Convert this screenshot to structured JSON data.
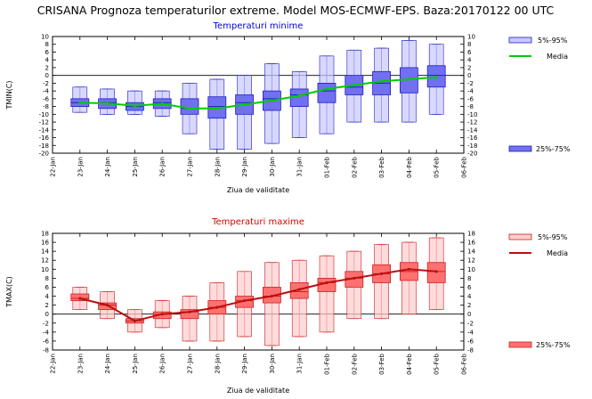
{
  "title": "CRISANA  Prognoza temperaturilor extreme.  Model MOS-ECMWF-EPS. Baza:20170122 00 UTC",
  "chart_data": [
    {
      "type": "box",
      "title": "Temperaturi minime",
      "title_color": "#0000dd",
      "xlabel": "Ziua de validitate",
      "ylabel": "TMIN(C)",
      "ylim": [
        -20,
        10
      ],
      "yticks": [
        "10",
        "8",
        "6",
        "4",
        "2",
        "0",
        "-2",
        "-4",
        "-6",
        "-8",
        "-10",
        "-12",
        "-14",
        "-16",
        "-18",
        "-20"
      ],
      "x_tick_labels": [
        "22-Jan",
        "23-Jan",
        "24-Jan",
        "25-Jan",
        "26-Jan",
        "27-Jan",
        "28-Jan",
        "29-Jan",
        "30-Jan",
        "31-Jan",
        "01-Feb",
        "02-Feb",
        "03-Feb",
        "04-Feb",
        "05-Feb",
        "06-Feb"
      ],
      "categories": [
        "23-Jan",
        "24-Jan",
        "25-Jan",
        "26-Jan",
        "27-Jan",
        "28-Jan",
        "29-Jan",
        "30-Jan",
        "31-Jan",
        "01-Feb",
        "02-Feb",
        "03-Feb",
        "04-Feb",
        "05-Feb"
      ],
      "p5": [
        -9.5,
        -10,
        -10,
        -10.5,
        -15,
        -19,
        -19,
        -17.5,
        -16,
        -15,
        -12,
        -12,
        -12,
        -10
      ],
      "p25": [
        -8,
        -8.5,
        -9,
        -8.5,
        -10,
        -11,
        -10,
        -9,
        -8,
        -7,
        -5,
        -5,
        -4.5,
        -3
      ],
      "median": [
        -7,
        -7,
        -8,
        -7,
        -8.5,
        -8,
        -7,
        -6,
        -5,
        -4,
        -3,
        -2,
        -1,
        0
      ],
      "p75": [
        -6,
        -6,
        -7,
        -6,
        -6,
        -5.5,
        -5,
        -4,
        -3.5,
        -2,
        0,
        1,
        2,
        2.5
      ],
      "p95": [
        -3,
        -3.5,
        -4,
        -4,
        -2,
        -1,
        0,
        3,
        1,
        5,
        6.5,
        7,
        9,
        8
      ],
      "mean": [
        -7,
        -7.2,
        -7.8,
        -7.3,
        -8.5,
        -8.5,
        -7.5,
        -6.5,
        -5.2,
        -3.5,
        -2.5,
        -1.5,
        -1,
        -0.5
      ],
      "legend": {
        "range_95": "5%-95%",
        "mean": "Media",
        "range_75": "25%-75%"
      },
      "colors": {
        "light": "#c8c8ff",
        "dark": "#7070f0",
        "stroke": "#2020c0",
        "mean": "#00cc00"
      }
    },
    {
      "type": "box",
      "title": "Temperaturi maxime",
      "title_color": "#dd0000",
      "xlabel": "Ziua de validitate",
      "ylabel": "TMAX(C)",
      "ylim": [
        -8,
        18
      ],
      "yticks": [
        "18",
        "16",
        "14",
        "12",
        "10",
        "8",
        "6",
        "4",
        "2",
        "0",
        "-2",
        "-4",
        "-6",
        "-8"
      ],
      "x_tick_labels": [
        "22-Jan",
        "23-Jan",
        "24-Jan",
        "25-Jan",
        "26-Jan",
        "27-Jan",
        "28-Jan",
        "29-Jan",
        "30-Jan",
        "31-Jan",
        "01-Feb",
        "02-Feb",
        "03-Feb",
        "04-Feb",
        "05-Feb",
        "06-Feb"
      ],
      "categories": [
        "23-Jan",
        "24-Jan",
        "25-Jan",
        "26-Jan",
        "27-Jan",
        "28-Jan",
        "29-Jan",
        "30-Jan",
        "31-Jan",
        "01-Feb",
        "02-Feb",
        "03-Feb",
        "04-Feb",
        "05-Feb"
      ],
      "p5": [
        1,
        -1,
        -4,
        -3,
        -6,
        -6,
        -5,
        -7,
        -5,
        -4,
        -1,
        -1,
        0,
        1
      ],
      "p25": [
        3,
        1,
        -2,
        -1,
        -1,
        0,
        1.5,
        2.5,
        3.5,
        5,
        6,
        7,
        7.5,
        7
      ],
      "median": [
        3.5,
        2,
        -1.5,
        0,
        0.5,
        1.5,
        3,
        4,
        5,
        7,
        8,
        9,
        9.5,
        9.5
      ],
      "p75": [
        4.5,
        2.5,
        -1,
        0.5,
        1,
        3,
        4,
        6,
        7,
        8,
        9.5,
        11,
        11.5,
        11.5
      ],
      "p95": [
        6,
        5,
        1,
        3,
        4,
        7,
        9.5,
        11.5,
        12,
        13,
        14,
        15.5,
        16,
        17
      ],
      "mean": [
        3.5,
        2,
        -1.5,
        0,
        0.5,
        1.5,
        3,
        4,
        5.5,
        7,
        8,
        9,
        10,
        9.5
      ],
      "legend": {
        "range_95": "5%-95%",
        "mean": "Media",
        "range_75": "25%-75%"
      },
      "colors": {
        "light": "#ffcccc",
        "dark": "#ff7070",
        "stroke": "#cc2020",
        "mean": "#bb1010"
      }
    }
  ]
}
